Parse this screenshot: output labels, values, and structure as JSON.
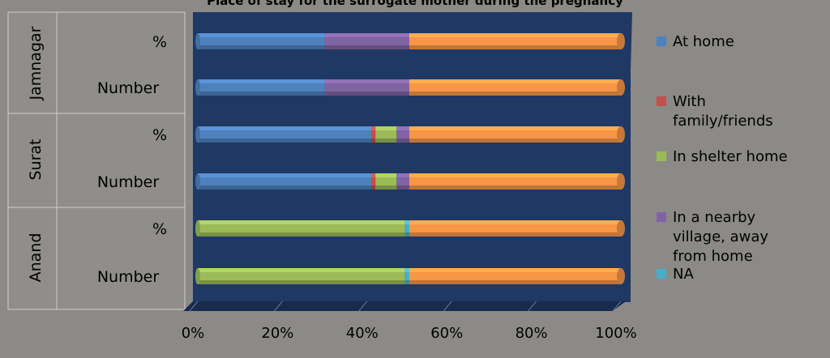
{
  "chart_data": {
    "type": "bar",
    "orientation": "horizontal",
    "stacked": "percent",
    "title": "Place of stay for the surrogate mother during the pregnancy",
    "xlabel": "",
    "ylabel": "",
    "xlim": [
      0,
      100
    ],
    "x_ticks": [
      "0%",
      "20%",
      "40%",
      "60%",
      "80%",
      "100%"
    ],
    "groups": [
      {
        "label": "Jamnagar",
        "rows": [
          "%",
          "Number"
        ]
      },
      {
        "label": "Surat",
        "rows": [
          "%",
          "Number"
        ]
      },
      {
        "label": "Anand",
        "rows": [
          "%",
          "Number"
        ]
      }
    ],
    "categories": [
      "Jamnagar %",
      "Jamnagar Number",
      "Surat %",
      "Surat Number",
      "Anand %",
      "Anand Number"
    ],
    "series": [
      {
        "name": "At home",
        "color": "#4f81bd",
        "values": [
          30,
          30,
          41,
          41,
          0,
          0
        ]
      },
      {
        "name": "With family/friends",
        "color": "#c0504d",
        "values": [
          0,
          0,
          1,
          1,
          0,
          0
        ]
      },
      {
        "name": "In shelter home",
        "color": "#9bbb59",
        "values": [
          0,
          0,
          5,
          5,
          49,
          49
        ]
      },
      {
        "name": "In a nearby village, away from home",
        "color": "#8064a2",
        "values": [
          20,
          20,
          3,
          3,
          0,
          0
        ]
      },
      {
        "name": "NA",
        "color": "#4bacc6",
        "values": [
          0,
          0,
          0,
          0,
          1,
          1
        ]
      },
      {
        "name": "",
        "color": "#f79646",
        "values": [
          50,
          50,
          50,
          50,
          50,
          50
        ]
      }
    ],
    "legend": [
      "At home",
      "With family/friends",
      "In shelter home",
      "In a nearby village, away from home",
      "NA"
    ],
    "legend_position": "right",
    "grid": false
  }
}
